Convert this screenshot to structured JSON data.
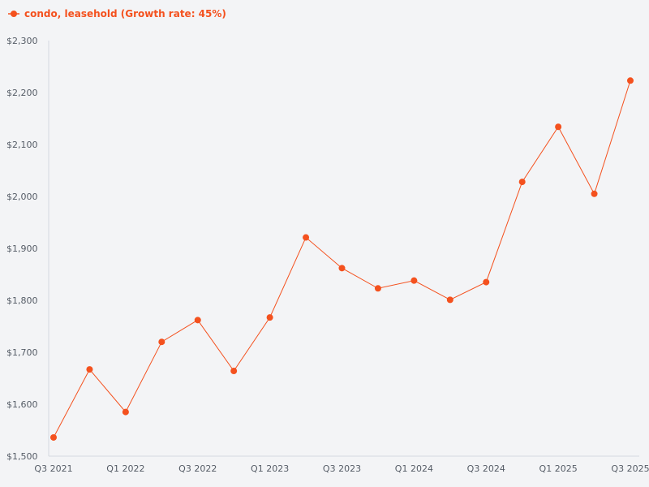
{
  "chart_data": {
    "type": "line",
    "title": "",
    "xlabel": "",
    "ylabel": "",
    "categories": [
      "Q3 2021",
      "Q4 2021",
      "Q1 2022",
      "Q2 2022",
      "Q3 2022",
      "Q4 2022",
      "Q1 2023",
      "Q2 2023",
      "Q3 2023",
      "Q4 2023",
      "Q1 2024",
      "Q2 2024",
      "Q3 2024",
      "Q4 2024",
      "Q1 2025",
      "Q2 2025",
      "Q3 2025"
    ],
    "x_tick_labels": [
      "Q3 2021",
      "Q1 2022",
      "Q3 2022",
      "Q1 2023",
      "Q3 2023",
      "Q1 2024",
      "Q3 2024",
      "Q1 2025",
      "Q3 2025"
    ],
    "series": [
      {
        "name": "condo, leasehold (Growth rate: 45%)",
        "color": "#f4511e",
        "values": [
          1536,
          1667,
          1585,
          1720,
          1762,
          1664,
          1767,
          1921,
          1862,
          1823,
          1838,
          1801,
          1835,
          2028,
          2134,
          2005,
          2223
        ]
      }
    ],
    "ylim": [
      1500,
      2300
    ],
    "y_ticks": [
      1500,
      1600,
      1700,
      1800,
      1900,
      2000,
      2100,
      2200,
      2300
    ],
    "y_tick_labels": [
      "$1,500",
      "$1,600",
      "$1,700",
      "$1,800",
      "$1,900",
      "$2,000",
      "$2,100",
      "$2,200",
      "$2,300"
    ],
    "grid": false,
    "legend_position": "top-left"
  }
}
